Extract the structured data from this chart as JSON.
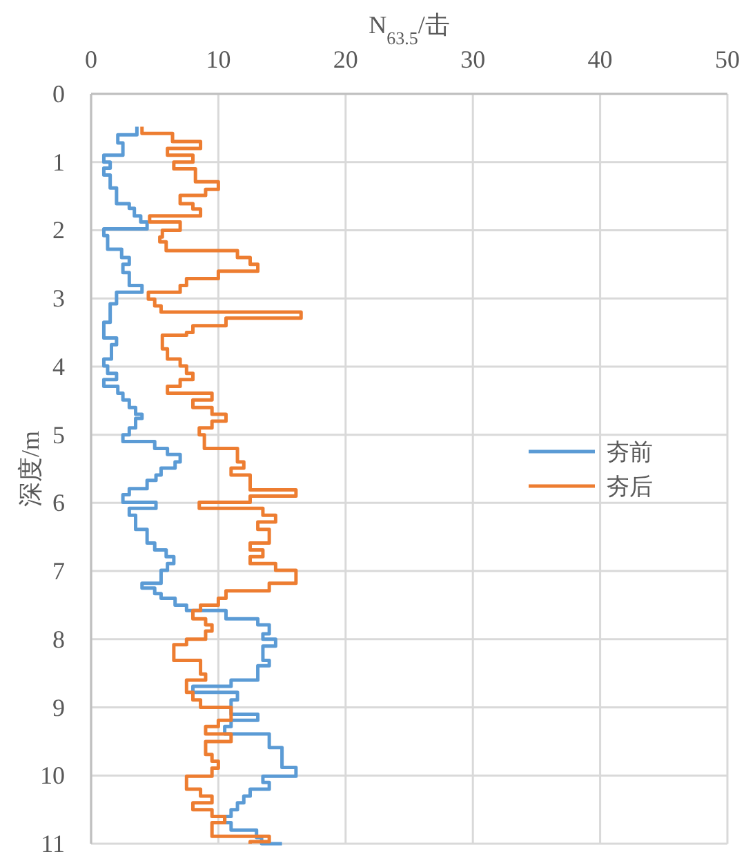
{
  "chart_data": {
    "type": "line",
    "xlabel": "N$_{63.5}$/击",
    "ylabel": "深度/m",
    "xlim": [
      0,
      50
    ],
    "xticks": [
      0,
      10,
      20,
      30,
      40,
      50
    ],
    "ylim": [
      11,
      0
    ],
    "yticks": [
      0,
      1,
      2,
      3,
      4,
      5,
      6,
      7,
      8,
      9,
      10,
      11
    ],
    "grid": true,
    "legend": "right",
    "marker": "none",
    "line_style": "solid",
    "series": [
      {
        "name": "夯前",
        "color": "#5b9bd5",
        "x": [
          3.6,
          3.6,
          2.1,
          2.1,
          2.5,
          2.5,
          1.0,
          1.0,
          1.5,
          1.5,
          1.0,
          1.0,
          1.5,
          1.5,
          2.0,
          2.0,
          3.0,
          3.0,
          3.4,
          3.4,
          3.9,
          3.9,
          4.4,
          4.4,
          1.0,
          1.0,
          1.3,
          1.3,
          2.4,
          2.4,
          3.0,
          3.0,
          2.5,
          2.5,
          3.0,
          3.0,
          4.0,
          4.0,
          2.0,
          2.0,
          1.5,
          1.5,
          1.0,
          1.0,
          2.0,
          2.0,
          1.6,
          1.6,
          1.0,
          1.0,
          1.3,
          1.3,
          2.0,
          2.0,
          1.0,
          1.0,
          2.1,
          2.1,
          2.5,
          2.5,
          3.0,
          3.0,
          3.5,
          3.5,
          4.0,
          4.0,
          3.5,
          3.5,
          3.0,
          3.0,
          2.5,
          2.5,
          5.0,
          5.0,
          6.0,
          6.0,
          7.0,
          7.0,
          6.6,
          6.6,
          5.5,
          5.5,
          5.1,
          5.1,
          4.4,
          4.4,
          3.0,
          3.0,
          2.5,
          2.5,
          5.1,
          5.1,
          3.0,
          3.0,
          3.5,
          3.5,
          4.4,
          4.4,
          5.0,
          5.0,
          5.9,
          5.9,
          6.5,
          6.5,
          6.0,
          6.0,
          5.5,
          5.5,
          4.0,
          4.0,
          5.0,
          5.0,
          5.5,
          5.5,
          6.6,
          6.6,
          7.5,
          7.5,
          10.6,
          10.6,
          13.1,
          13.1,
          14.0,
          14.0,
          13.5,
          13.5,
          14.5,
          14.5,
          13.5,
          13.5,
          14.0,
          14.0,
          13.1,
          13.1,
          11.0,
          11.0,
          8.0,
          8.0,
          11.5,
          11.5,
          11.0,
          11.0,
          13.1,
          13.1,
          11.0,
          11.0,
          10.5,
          10.5,
          14.0,
          14.0,
          15.0,
          15.0,
          16.1,
          16.1,
          13.5,
          13.5,
          14.0,
          14.0,
          12.5,
          12.5,
          12.0,
          12.0,
          11.5,
          11.5,
          11.0,
          11.0,
          10.5,
          10.5,
          11.0,
          11.0,
          13.0,
          13.0,
          13.4,
          13.4,
          15.0
        ],
        "values": [
          0.48,
          0.6,
          0.6,
          0.72,
          0.72,
          0.9,
          0.9,
          1.0,
          1.0,
          1.09,
          1.09,
          1.19,
          1.19,
          1.38,
          1.38,
          1.61,
          1.61,
          1.68,
          1.68,
          1.79,
          1.79,
          1.88,
          1.88,
          1.98,
          1.98,
          2.08,
          2.08,
          2.28,
          2.28,
          2.4,
          2.4,
          2.5,
          2.5,
          2.62,
          2.62,
          2.81,
          2.81,
          2.91,
          2.91,
          3.08,
          3.08,
          3.35,
          3.35,
          3.58,
          3.58,
          3.68,
          3.68,
          3.89,
          3.89,
          3.99,
          3.99,
          4.1,
          4.1,
          4.19,
          4.19,
          4.29,
          4.29,
          4.39,
          4.39,
          4.49,
          4.49,
          4.6,
          4.6,
          4.7,
          4.7,
          4.76,
          4.76,
          4.9,
          4.9,
          5.0,
          5.0,
          5.1,
          5.1,
          5.2,
          5.2,
          5.29,
          5.29,
          5.4,
          5.4,
          5.49,
          5.49,
          5.59,
          5.59,
          5.67,
          5.67,
          5.79,
          5.79,
          5.88,
          5.88,
          5.99,
          5.99,
          6.08,
          6.08,
          6.18,
          6.18,
          6.39,
          6.39,
          6.59,
          6.59,
          6.69,
          6.69,
          6.79,
          6.79,
          6.89,
          6.89,
          6.99,
          6.99,
          7.18,
          7.18,
          7.25,
          7.25,
          7.33,
          7.33,
          7.4,
          7.4,
          7.5,
          7.5,
          7.58,
          7.58,
          7.7,
          7.7,
          7.79,
          7.79,
          7.92,
          7.92,
          8.0,
          8.0,
          8.1,
          8.1,
          8.31,
          8.31,
          8.39,
          8.39,
          8.6,
          8.6,
          8.69,
          8.69,
          8.78,
          8.78,
          8.89,
          8.89,
          9.1,
          9.1,
          9.19,
          9.19,
          9.28,
          9.28,
          9.39,
          9.39,
          9.59,
          9.59,
          9.88,
          9.88,
          10.01,
          10.01,
          10.1,
          10.1,
          10.2,
          10.2,
          10.3,
          10.3,
          10.4,
          10.4,
          10.5,
          10.5,
          10.6,
          10.6,
          10.69,
          10.69,
          10.8,
          10.8,
          10.91,
          10.91,
          11.0,
          11.0
        ]
      },
      {
        "name": "夯后",
        "color": "#ed7d31",
        "x": [
          4.0,
          4.0,
          6.4,
          6.4,
          8.6,
          8.6,
          6.0,
          6.0,
          8.0,
          8.0,
          6.5,
          6.5,
          8.2,
          8.2,
          10.0,
          10.0,
          9.0,
          9.0,
          7.0,
          7.0,
          8.0,
          8.0,
          8.6,
          8.6,
          4.6,
          4.6,
          7.0,
          7.0,
          5.6,
          5.6,
          5.4,
          5.4,
          5.9,
          5.9,
          11.5,
          11.5,
          12.5,
          12.5,
          13.1,
          13.1,
          10.0,
          10.0,
          7.5,
          7.5,
          7.0,
          7.0,
          4.5,
          4.5,
          5.0,
          5.0,
          5.5,
          5.5,
          16.5,
          16.5,
          10.6,
          10.6,
          8.0,
          8.0,
          7.5,
          7.5,
          5.6,
          5.6,
          6.0,
          6.0,
          7.0,
          7.0,
          7.5,
          7.5,
          8.0,
          8.0,
          7.0,
          7.0,
          6.0,
          6.0,
          9.5,
          9.5,
          8.0,
          8.0,
          9.5,
          9.5,
          10.6,
          10.6,
          9.5,
          9.5,
          8.5,
          8.5,
          8.9,
          8.9,
          11.5,
          11.5,
          12.0,
          12.0,
          11.0,
          11.0,
          12.5,
          12.5,
          16.1,
          16.1,
          12.5,
          12.5,
          8.5,
          8.5,
          13.5,
          13.5,
          14.5,
          14.5,
          13.1,
          13.1,
          14.0,
          14.0,
          12.5,
          12.5,
          13.5,
          13.5,
          12.5,
          12.5,
          14.5,
          14.5,
          16.1,
          16.1,
          14.0,
          14.0,
          10.6,
          10.6,
          10.0,
          10.0,
          8.6,
          8.6,
          8.0,
          8.0,
          9.0,
          9.0,
          9.5,
          9.5,
          9.0,
          9.0,
          7.5,
          7.5,
          6.5,
          6.5,
          8.6,
          8.6,
          9.0,
          9.0,
          7.5,
          7.5,
          8.0,
          8.0,
          8.6,
          8.6,
          11.0,
          11.0,
          10.0,
          10.0,
          9.0,
          9.0,
          11.0,
          11.0,
          9.0,
          9.0,
          9.5,
          9.5,
          10.0,
          10.0,
          9.5,
          9.5,
          7.5,
          7.5,
          8.6,
          8.6,
          9.5,
          9.5,
          8.0,
          8.0,
          9.5,
          9.5,
          10.5,
          10.5,
          9.5,
          9.5,
          14.0,
          14.0,
          12.5,
          12.5
        ],
        "values": [
          0.48,
          0.58,
          0.58,
          0.7,
          0.7,
          0.8,
          0.8,
          0.9,
          0.9,
          1.0,
          1.0,
          1.1,
          1.1,
          1.29,
          1.29,
          1.4,
          1.4,
          1.49,
          1.49,
          1.61,
          1.61,
          1.69,
          1.69,
          1.79,
          1.79,
          1.88,
          1.88,
          2.0,
          2.0,
          2.1,
          2.1,
          2.17,
          2.17,
          2.3,
          2.3,
          2.4,
          2.4,
          2.5,
          2.5,
          2.6,
          2.6,
          2.71,
          2.71,
          2.81,
          2.81,
          2.91,
          2.91,
          3.01,
          3.01,
          3.11,
          3.11,
          3.2,
          3.2,
          3.29,
          3.29,
          3.4,
          3.4,
          3.5,
          3.5,
          3.54,
          3.54,
          3.74,
          3.74,
          3.89,
          3.89,
          3.99,
          3.99,
          4.1,
          4.1,
          4.19,
          4.19,
          4.29,
          4.29,
          4.39,
          4.39,
          4.49,
          4.49,
          4.6,
          4.6,
          4.7,
          4.7,
          4.8,
          4.8,
          4.9,
          4.9,
          5.0,
          5.0,
          5.2,
          5.2,
          5.4,
          5.4,
          5.49,
          5.49,
          5.59,
          5.59,
          5.81,
          5.81,
          5.9,
          5.9,
          5.99,
          5.99,
          6.08,
          6.08,
          6.18,
          6.18,
          6.28,
          6.28,
          6.39,
          6.39,
          6.59,
          6.59,
          6.69,
          6.69,
          6.79,
          6.79,
          6.89,
          6.89,
          6.99,
          6.99,
          7.18,
          7.18,
          7.29,
          7.29,
          7.4,
          7.4,
          7.5,
          7.5,
          7.58,
          7.58,
          7.7,
          7.7,
          7.79,
          7.79,
          7.88,
          7.88,
          8.0,
          8.0,
          8.08,
          8.08,
          8.31,
          8.31,
          8.51,
          8.51,
          8.6,
          8.6,
          8.78,
          8.78,
          8.89,
          8.89,
          9.0,
          9.0,
          9.19,
          9.19,
          9.28,
          9.28,
          9.39,
          9.39,
          9.5,
          9.5,
          9.69,
          9.69,
          9.79,
          9.79,
          9.89,
          9.89,
          10.01,
          10.01,
          10.2,
          10.2,
          10.3,
          10.3,
          10.4,
          10.4,
          10.5,
          10.5,
          10.6,
          10.6,
          10.69,
          10.69,
          10.89,
          10.89,
          10.97,
          10.97,
          11.0
        ]
      }
    ]
  }
}
